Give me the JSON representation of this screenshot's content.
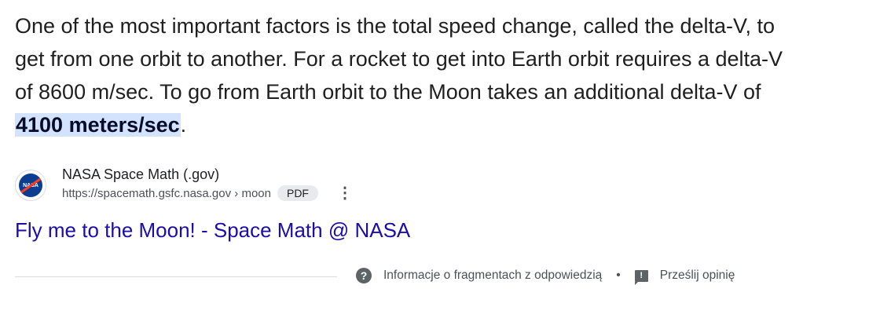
{
  "snippet": {
    "text_before": "One of the most important factors is the total speed change, called the delta-V, to get from one orbit to another. For a rocket to get into Earth orbit requires a delta-V of 8600 m/sec. To go from Earth orbit to the Moon takes an additional delta-V of ",
    "highlight": "4100 meters/sec",
    "text_after": "."
  },
  "source": {
    "favicon_text": "NASA",
    "site_name": "NASA Space Math (.gov)",
    "url": "https://spacemath.gsfc.nasa.gov › moon",
    "badge": "PDF",
    "more_icon": "⋮"
  },
  "result_title": "Fly me to the Moon! - Space Math @ NASA",
  "footer": {
    "about_icon": "?",
    "about_label": "Informacje o fragmentach z odpowiedzią",
    "separator": "•",
    "feedback_icon": "!",
    "feedback_label": "Prześlij opinię"
  },
  "colors": {
    "link": "#1a0dab",
    "highlight": "#d3e3fd"
  }
}
